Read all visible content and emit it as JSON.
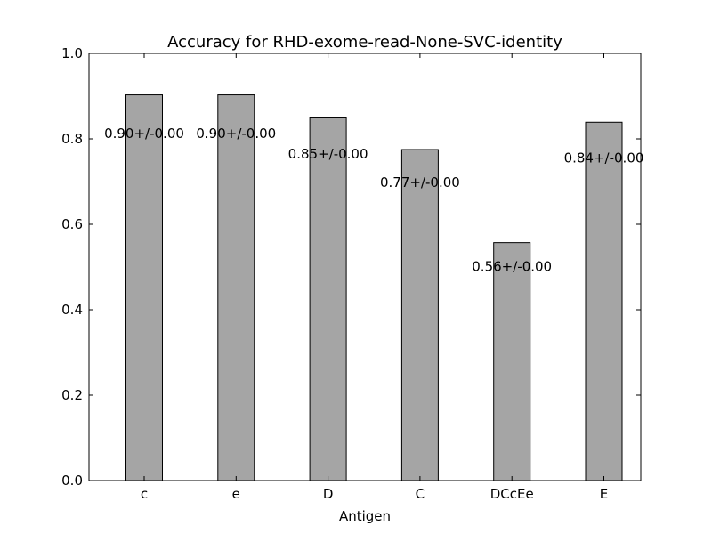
{
  "chart_data": {
    "type": "bar",
    "title": "Accuracy for RHD-exome-read-None-SVC-identity",
    "xlabel": "Antigen",
    "ylabel": "",
    "categories": [
      "c",
      "e",
      "D",
      "C",
      "DCcEe",
      "E"
    ],
    "values": [
      0.903,
      0.903,
      0.849,
      0.775,
      0.557,
      0.839
    ],
    "data_labels": [
      "0.90+/-0.00",
      "0.90+/-0.00",
      "0.85+/-0.00",
      "0.77+/-0.00",
      "0.56+/-0.00",
      "0.84+/-0.00"
    ],
    "ylim": [
      0,
      1.0
    ],
    "yticks": [
      0.0,
      0.2,
      0.4,
      0.6,
      0.8,
      1.0
    ],
    "ytick_labels": [
      "0.0",
      "0.2",
      "0.4",
      "0.6",
      "0.8",
      "1.0"
    ],
    "grid": false,
    "legend": "none",
    "bar_color": "#a5a5a5",
    "edge_color": "#000000"
  }
}
